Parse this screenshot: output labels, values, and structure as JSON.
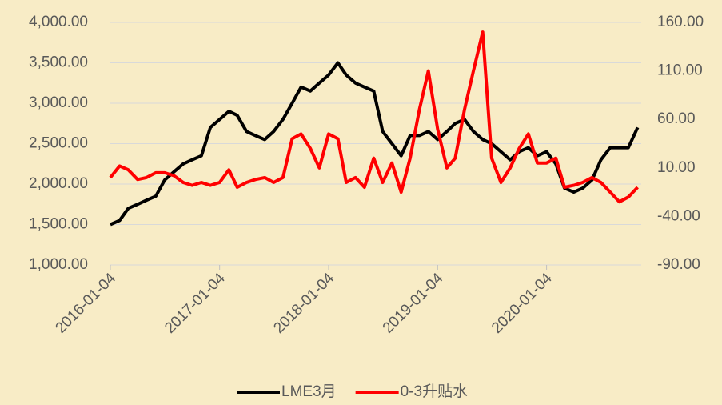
{
  "chart_data": {
    "type": "line",
    "x": [
      "2016-01-04",
      "2016-02-04",
      "2016-03-04",
      "2016-04-04",
      "2016-05-04",
      "2016-06-04",
      "2016-07-04",
      "2016-08-04",
      "2016-09-04",
      "2016-10-04",
      "2016-11-04",
      "2016-12-04",
      "2017-01-04",
      "2017-02-04",
      "2017-03-04",
      "2017-04-04",
      "2017-05-04",
      "2017-06-04",
      "2017-07-04",
      "2017-08-04",
      "2017-09-04",
      "2017-10-04",
      "2017-11-04",
      "2017-12-04",
      "2018-01-04",
      "2018-02-04",
      "2018-03-04",
      "2018-04-04",
      "2018-05-04",
      "2018-06-04",
      "2018-07-04",
      "2018-08-04",
      "2018-09-04",
      "2018-10-04",
      "2018-11-04",
      "2018-12-04",
      "2019-01-04",
      "2019-02-04",
      "2019-03-04",
      "2019-04-04",
      "2019-05-04",
      "2019-06-04",
      "2019-07-04",
      "2019-08-04",
      "2019-09-04",
      "2019-10-04",
      "2019-11-04",
      "2019-12-04",
      "2020-01-04",
      "2020-02-04",
      "2020-03-04",
      "2020-04-04",
      "2020-05-04",
      "2020-06-04",
      "2020-07-04",
      "2020-08-04",
      "2020-09-04",
      "2020-10-04",
      "2020-11-04"
    ],
    "series": [
      {
        "name": "LME3月",
        "color": "#000000",
        "values": [
          1500,
          1550,
          1700,
          1750,
          1800,
          1850,
          2050,
          2150,
          2250,
          2300,
          2350,
          2700,
          2800,
          2900,
          2850,
          2650,
          2600,
          2550,
          2650,
          2800,
          3000,
          3200,
          3150,
          3250,
          3350,
          3500,
          3350,
          3250,
          3200,
          3150,
          2650,
          2500,
          2350,
          2600,
          2600,
          2650,
          2550,
          2650,
          2750,
          2800,
          2650,
          2550,
          2500,
          2400,
          2300,
          2400,
          2450,
          2350,
          2400,
          2250,
          1950,
          1900,
          1950,
          2050,
          2300,
          2450,
          2450,
          2450,
          2700
        ]
      },
      {
        "name": "0-3升贴水",
        "color": "#ff0000",
        "axis": "y2",
        "values": [
          0,
          12,
          8,
          -2,
          0,
          5,
          5,
          2,
          -5,
          -8,
          -5,
          -8,
          -5,
          8,
          -10,
          -5,
          -2,
          0,
          -5,
          0,
          40,
          45,
          30,
          10,
          45,
          40,
          -5,
          0,
          -10,
          20,
          -5,
          15,
          -15,
          20,
          70,
          110,
          50,
          10,
          20,
          70,
          110,
          150,
          20,
          -5,
          10,
          30,
          45,
          15,
          15,
          20,
          -10,
          -8,
          -5,
          0,
          -5,
          -15,
          -25,
          -20,
          -10
        ]
      }
    ],
    "xlim": [
      "2016-01-04",
      "2020-11-16"
    ],
    "xticks": [
      "2016-01-04",
      "2017-01-04",
      "2018-01-04",
      "2019-01-04",
      "2020-01-04"
    ],
    "ylim": [
      1000,
      4000
    ],
    "yticks": [
      {
        "value": 1000,
        "label": "1,000.00"
      },
      {
        "value": 1500,
        "label": "1,500.00"
      },
      {
        "value": 2000,
        "label": "2,000.00"
      },
      {
        "value": 2500,
        "label": "2,500.00"
      },
      {
        "value": 3000,
        "label": "3,000.00"
      },
      {
        "value": 3500,
        "label": "3,500.00"
      },
      {
        "value": 4000,
        "label": "4,000.00"
      }
    ],
    "y2lim": [
      -90,
      160
    ],
    "y2ticks": [
      {
        "value": -90,
        "label": "-90.00"
      },
      {
        "value": -40,
        "label": "-40.00"
      },
      {
        "value": 10,
        "label": "10.00"
      },
      {
        "value": 60,
        "label": "60.00"
      },
      {
        "value": 110,
        "label": "110.00"
      },
      {
        "value": 160,
        "label": "160.00"
      }
    ],
    "grid": true,
    "legend": "bottom"
  }
}
